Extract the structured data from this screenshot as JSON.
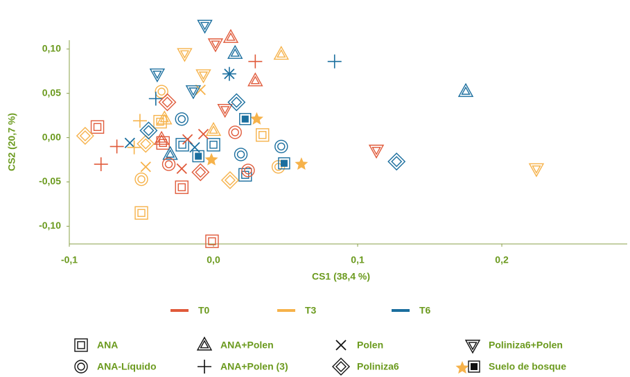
{
  "chart_data": {
    "type": "scatter",
    "x_label": "CS1 (38,4 %)",
    "y_label": "CS2 (20,7 %)",
    "xlim": [
      -0.1,
      0.287
    ],
    "ylim": [
      -0.12,
      0.11
    ],
    "xticks": [
      {
        "value": -0.1,
        "label": "-0,1"
      },
      {
        "value": 0,
        "label": "0,0"
      },
      {
        "value": 0.1,
        "label": "0,1"
      },
      {
        "value": 0.2,
        "label": "0,2"
      }
    ],
    "yticks": [
      {
        "value": 0.1,
        "label": "0,10"
      },
      {
        "value": 0.05,
        "label": "0,05"
      },
      {
        "value": 0,
        "label": "0,00"
      },
      {
        "value": -0.05,
        "label": "-0,05"
      },
      {
        "value": -0.1,
        "label": "-0,10"
      }
    ],
    "times": [
      {
        "name": "T0",
        "color": "#e05a3a"
      },
      {
        "name": "T3",
        "color": "#f6b24a"
      },
      {
        "name": "T6",
        "color": "#1a6e9e"
      }
    ],
    "treatments": [
      {
        "name": "ANA",
        "marker": "square",
        "series": [
          {
            "x": [
              -0.0805,
              -0.022,
              -0.001,
              -0.035
            ],
            "y": [
              0.012,
              -0.056,
              -0.117,
              -0.006
            ]
          },
          {
            "x": [
              -0.05,
              -0.037,
              0.034
            ],
            "y": [
              -0.085,
              0.018,
              0.003
            ]
          },
          {
            "x": [
              -0.0216,
              0,
              0.022
            ],
            "y": [
              -0.008,
              -0.008,
              -0.042
            ]
          }
        ]
      },
      {
        "name": "ANA+Polen",
        "marker": "triangle",
        "series": [
          {
            "x": [
              0.012,
              0.029,
              -0.036
            ],
            "y": [
              0.113,
              0.064,
              -0.002
            ]
          },
          {
            "x": [
              0.047,
              0,
              -0.034
            ],
            "y": [
              0.094,
              0.008,
              0.021
            ]
          },
          {
            "x": [
              0.015,
              0.175,
              -0.03
            ],
            "y": [
              0.095,
              0.052,
              -0.019
            ]
          }
        ]
      },
      {
        "name": "Polen",
        "marker": "x",
        "series": [
          {
            "x": [
              -0.018,
              -0.007,
              -0.022
            ],
            "y": [
              -0.002,
              0.004,
              -0.035
            ]
          },
          {
            "x": [
              -0.047,
              -0.009
            ],
            "y": [
              -0.033,
              0.054
            ]
          },
          {
            "x": [
              -0.058,
              -0.013,
              0.011
            ],
            "y": [
              -0.006,
              -0.011,
              0.072
            ]
          }
        ]
      },
      {
        "name": "Poliniza6+Polen",
        "marker": "down-triangle",
        "series": [
          {
            "x": [
              0.0014,
              0.008,
              0.113
            ],
            "y": [
              0.106,
              0.032,
              -0.014
            ]
          },
          {
            "x": [
              -0.02,
              -0.007,
              0.224
            ],
            "y": [
              0.095,
              0.071,
              -0.035
            ]
          },
          {
            "x": [
              -0.006,
              -0.039,
              -0.014
            ],
            "y": [
              0.127,
              0.072,
              0.053
            ]
          }
        ]
      },
      {
        "name": "ANA-Líquido",
        "marker": "circle",
        "series": [
          {
            "x": [
              0.015,
              -0.031,
              0.024
            ],
            "y": [
              0.006,
              -0.03,
              -0.037
            ]
          },
          {
            "x": [
              -0.036,
              -0.05,
              0.045
            ],
            "y": [
              0.052,
              -0.047,
              -0.033
            ]
          },
          {
            "x": [
              -0.022,
              0.019,
              0.047
            ],
            "y": [
              0.021,
              -0.019,
              -0.01
            ]
          }
        ]
      },
      {
        "name": "ANA+Polen (3)",
        "marker": "plus",
        "series": [
          {
            "x": [
              -0.078,
              -0.067,
              0.029
            ],
            "y": [
              -0.03,
              -0.01,
              0.086
            ]
          },
          {
            "x": [
              -0.051,
              -0.055
            ],
            "y": [
              0.019,
              -0.011
            ]
          },
          {
            "x": [
              0.084,
              -0.04,
              0.011
            ],
            "y": [
              0.086,
              0.044,
              0.072
            ]
          }
        ]
      },
      {
        "name": "Poliniza6",
        "marker": "diamond",
        "series": [
          {
            "x": [
              -0.032,
              -0.009
            ],
            "y": [
              0.04,
              -0.039
            ]
          },
          {
            "x": [
              -0.089,
              -0.047,
              0.0115
            ],
            "y": [
              0.002,
              -0.007,
              -0.048
            ]
          },
          {
            "x": [
              -0.045,
              0.016,
              0.127
            ],
            "y": [
              0.008,
              0.04,
              -0.027
            ]
          }
        ]
      },
      {
        "name": "Suelo de bosque",
        "marker": "star-square",
        "series": [
          {
            "x": [],
            "y": []
          },
          {
            "x": [
              0.03,
              -0.0014,
              0.061
            ],
            "y": [
              0.021,
              -0.025,
              -0.03
            ],
            "marker": "star"
          },
          {
            "x": [
              0.022,
              -0.0105,
              0.049
            ],
            "y": [
              0.021,
              -0.021,
              -0.029
            ],
            "marker": "filled-square"
          }
        ]
      }
    ]
  }
}
